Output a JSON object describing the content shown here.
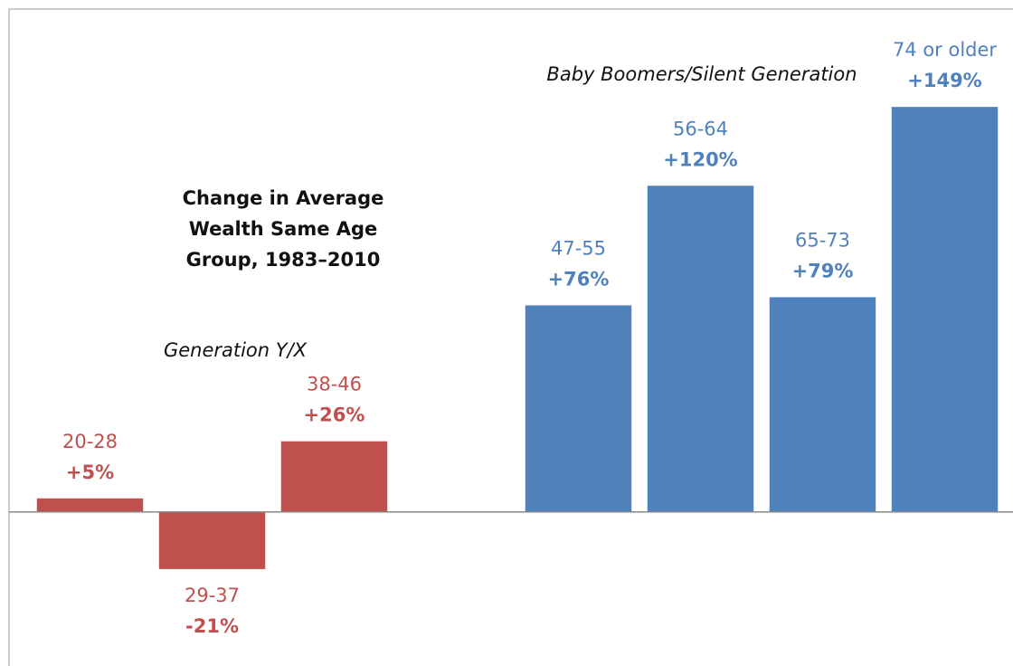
{
  "chart_data": {
    "type": "bar",
    "title": "Change in Average Wealth Same Age Group, 1983–2010",
    "annotations": [
      "Generation Y/X",
      "Baby Boomers/Silent Generation"
    ],
    "categories": [
      "20-28",
      "29-37",
      "38-46",
      null,
      "47-55",
      "56-64",
      "65-73",
      "74 or older"
    ],
    "values": [
      5,
      -21,
      26,
      null,
      76,
      120,
      79,
      149
    ],
    "value_labels": [
      "+5%",
      "-21%",
      "+26%",
      null,
      "+76%",
      "+120%",
      "+79%",
      "+149%"
    ],
    "colors": [
      "#c0504d",
      "#c0504d",
      "#c0504d",
      null,
      "#4f81bd",
      "#4f81bd",
      "#4f81bd",
      "#4f81bd"
    ],
    "ylim": [
      -55,
      185
    ]
  }
}
